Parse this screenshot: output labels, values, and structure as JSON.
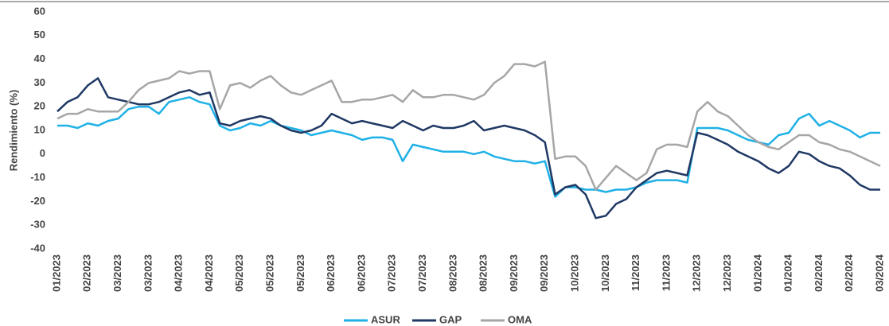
{
  "chart_data": {
    "type": "line",
    "ylabel": "Rendimiento (%)",
    "categories": [
      "01/2023",
      null,
      null,
      "02/2023",
      null,
      null,
      "03/2023",
      null,
      null,
      "03/2023",
      null,
      null,
      "04/2023",
      null,
      null,
      "04/2023",
      null,
      null,
      "05/2023",
      null,
      null,
      "05/2023",
      null,
      null,
      "05/2023",
      null,
      null,
      "06/2023",
      null,
      null,
      "06/2023",
      null,
      null,
      "07/2023",
      null,
      null,
      "07/2023",
      null,
      null,
      "08/2023",
      null,
      null,
      "08/2023",
      null,
      null,
      "09/2023",
      null,
      null,
      "09/2023",
      null,
      null,
      "10/2023",
      null,
      null,
      "10/2023",
      null,
      null,
      "11/2023",
      null,
      null,
      "11/2023",
      null,
      null,
      "12/2023",
      null,
      null,
      "12/2023",
      null,
      null,
      "01/2024",
      null,
      null,
      "01/2024",
      null,
      null,
      "02/2024",
      null,
      null,
      "02/2024",
      null,
      null,
      "03/2024"
    ],
    "series": [
      {
        "name": "ASUR",
        "color": "#1fb1e6",
        "values": [
          12,
          12,
          11,
          13,
          12,
          14,
          15,
          19,
          20,
          20,
          17,
          22,
          23,
          24,
          22,
          21,
          12,
          10,
          11,
          13,
          12,
          14,
          12,
          11,
          10,
          8,
          9,
          10,
          9,
          8,
          6,
          7,
          7,
          6,
          -3,
          4,
          3,
          2,
          1,
          1,
          1,
          0,
          1,
          -1,
          -2,
          -3,
          -3,
          -4,
          -3,
          -18,
          -14,
          -14,
          -15,
          -15,
          -16,
          -15,
          -15,
          -14,
          -12,
          -11,
          -11,
          -11,
          -12,
          11,
          11,
          11,
          10,
          8,
          6,
          5,
          4,
          8,
          9,
          15,
          17,
          12,
          14,
          12,
          10,
          7,
          9,
          9
        ]
      },
      {
        "name": "GAP",
        "color": "#1f3864",
        "values": [
          18,
          22,
          24,
          29,
          32,
          24,
          23,
          22,
          21,
          21,
          22,
          24,
          26,
          27,
          25,
          26,
          13,
          12,
          14,
          15,
          16,
          15,
          12,
          10,
          9,
          10,
          12,
          17,
          15,
          13,
          14,
          13,
          12,
          11,
          14,
          12,
          10,
          12,
          11,
          11,
          12,
          14,
          10,
          11,
          12,
          11,
          10,
          8,
          5,
          -17,
          -14,
          -13,
          -17,
          -27,
          -26,
          -21,
          -19,
          -14,
          -11,
          -8,
          -7,
          -8,
          -9,
          9,
          8,
          6,
          4,
          1,
          -1,
          -3,
          -6,
          -8,
          -5,
          1,
          0,
          -3,
          -5,
          -6,
          -9,
          -13,
          -15,
          -15
        ]
      },
      {
        "name": "OMA",
        "color": "#a6a6a6",
        "values": [
          15,
          17,
          17,
          19,
          18,
          18,
          18,
          22,
          27,
          30,
          31,
          32,
          35,
          34,
          35,
          35,
          19,
          29,
          30,
          28,
          31,
          33,
          29,
          26,
          25,
          27,
          29,
          31,
          22,
          22,
          23,
          23,
          24,
          25,
          22,
          27,
          24,
          24,
          25,
          25,
          24,
          23,
          25,
          30,
          33,
          38,
          38,
          37,
          39,
          -2,
          -1,
          -1,
          -5,
          -15,
          -10,
          -5,
          -8,
          -11,
          -8,
          2,
          4,
          4,
          3,
          18,
          22,
          18,
          16,
          12,
          8,
          5,
          3,
          2,
          5,
          8,
          8,
          5,
          4,
          2,
          1,
          -1,
          -3,
          -5
        ]
      }
    ],
    "ylim": [
      -40,
      60
    ],
    "yticks": [
      -40,
      -30,
      -20,
      -10,
      0,
      10,
      20,
      30,
      40,
      50,
      60
    ]
  }
}
